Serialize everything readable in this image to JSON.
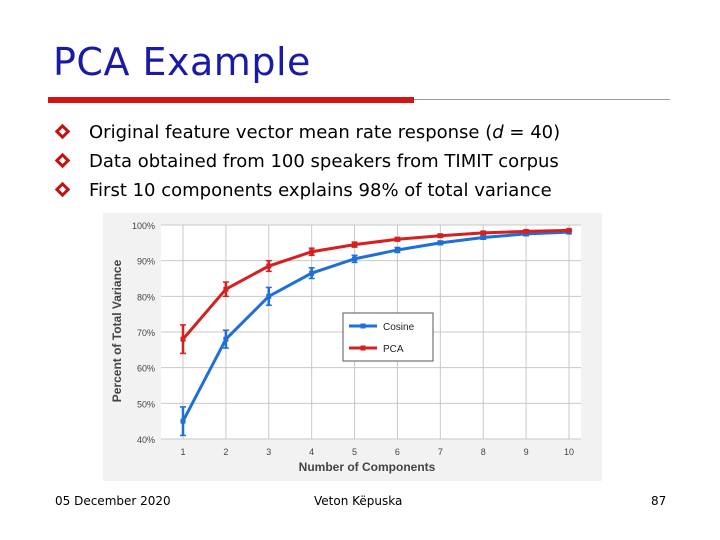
{
  "slide": {
    "title": "PCA Example",
    "bullets": [
      {
        "pre": "Original feature vector mean rate response (",
        "em": "d",
        "post": " = 40)"
      },
      {
        "pre": "Data obtained from 100 speakers from TIMIT corpus",
        "em": "",
        "post": ""
      },
      {
        "pre": "First 10 components explains 98% of total variance",
        "em": "",
        "post": ""
      }
    ],
    "footer": {
      "date": "05 December 2020",
      "author": "Veton Këpuska",
      "page": "87"
    },
    "colors": {
      "title": "#1a1aa8",
      "rule": "#d21414",
      "bullet": "#c81010"
    }
  },
  "chart_data": {
    "type": "line",
    "title": "",
    "xlabel": "Number of Components",
    "ylabel": "Percent of Total Variance",
    "categories": [
      "1",
      "2",
      "3",
      "4",
      "5",
      "6",
      "7",
      "8",
      "9",
      "10"
    ],
    "x": [
      1,
      2,
      3,
      4,
      5,
      6,
      7,
      8,
      9,
      10
    ],
    "yticks": [
      "40%",
      "50%",
      "60%",
      "70%",
      "80%",
      "90%",
      "100%"
    ],
    "ylim": [
      40,
      100
    ],
    "grid": true,
    "legend": "center-right",
    "series": [
      {
        "name": "Cosine",
        "color": "#1f6fd6",
        "values": [
          45,
          68,
          80,
          86.5,
          90.5,
          93,
          95,
          96.5,
          97.5,
          98
        ],
        "errors": [
          4,
          2.5,
          2.5,
          1.5,
          1,
          0.7,
          0.5,
          0.5,
          0.5,
          0.4
        ]
      },
      {
        "name": "PCA",
        "color": "#d62020",
        "values": [
          68,
          82,
          88.5,
          92.5,
          94.5,
          96,
          97,
          97.8,
          98.2,
          98.5
        ],
        "errors": [
          4,
          2,
          1.5,
          1,
          0.7,
          0.5,
          0.4,
          0.4,
          0.4,
          0.3
        ]
      }
    ]
  }
}
